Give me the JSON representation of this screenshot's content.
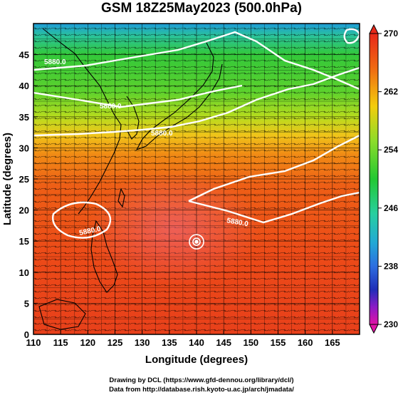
{
  "title": "GSM 18Z25May2023 (500.0hPa)",
  "map": {
    "xlabel": "Longitude (degrees)",
    "ylabel": "Latitude  (degrees)",
    "lon_range": [
      110,
      170
    ],
    "lat_range": [
      0,
      50
    ],
    "lon_ticks": [
      "110",
      "115",
      "120",
      "125",
      "130",
      "135",
      "140",
      "145",
      "150",
      "155",
      "160",
      "165"
    ],
    "lat_ticks": [
      "0",
      "5",
      "10",
      "15",
      "20",
      "25",
      "30",
      "35",
      "40",
      "45"
    ],
    "contour_labels": [
      "5880.0",
      "5880.0",
      "5880.0",
      "5880.0",
      "5880.0"
    ],
    "typhoon_center": {
      "lon": 140.0,
      "lat": 14.9
    }
  },
  "colorbar": {
    "ticks": [
      "270",
      "262",
      "254",
      "246",
      "238",
      "230"
    ],
    "colors": {
      "v270": "#e8281a",
      "v266": "#f06a12",
      "v262": "#f3cd0c",
      "v258": "#8cdc2a",
      "v254": "#22c832",
      "v250": "#28cfa0",
      "v246": "#22a8d6",
      "v242": "#2d6ee0",
      "v238": "#1f2eb8",
      "v234": "#8a1bc6",
      "v230": "#e114a6"
    }
  },
  "credits": {
    "line1": "Drawing by DCL (https://www.gfd-dennou.org/library/dcl/)",
    "line2": "Data from http://database.rish.kyoto-u.ac.jp/arch/jmadata/"
  }
}
